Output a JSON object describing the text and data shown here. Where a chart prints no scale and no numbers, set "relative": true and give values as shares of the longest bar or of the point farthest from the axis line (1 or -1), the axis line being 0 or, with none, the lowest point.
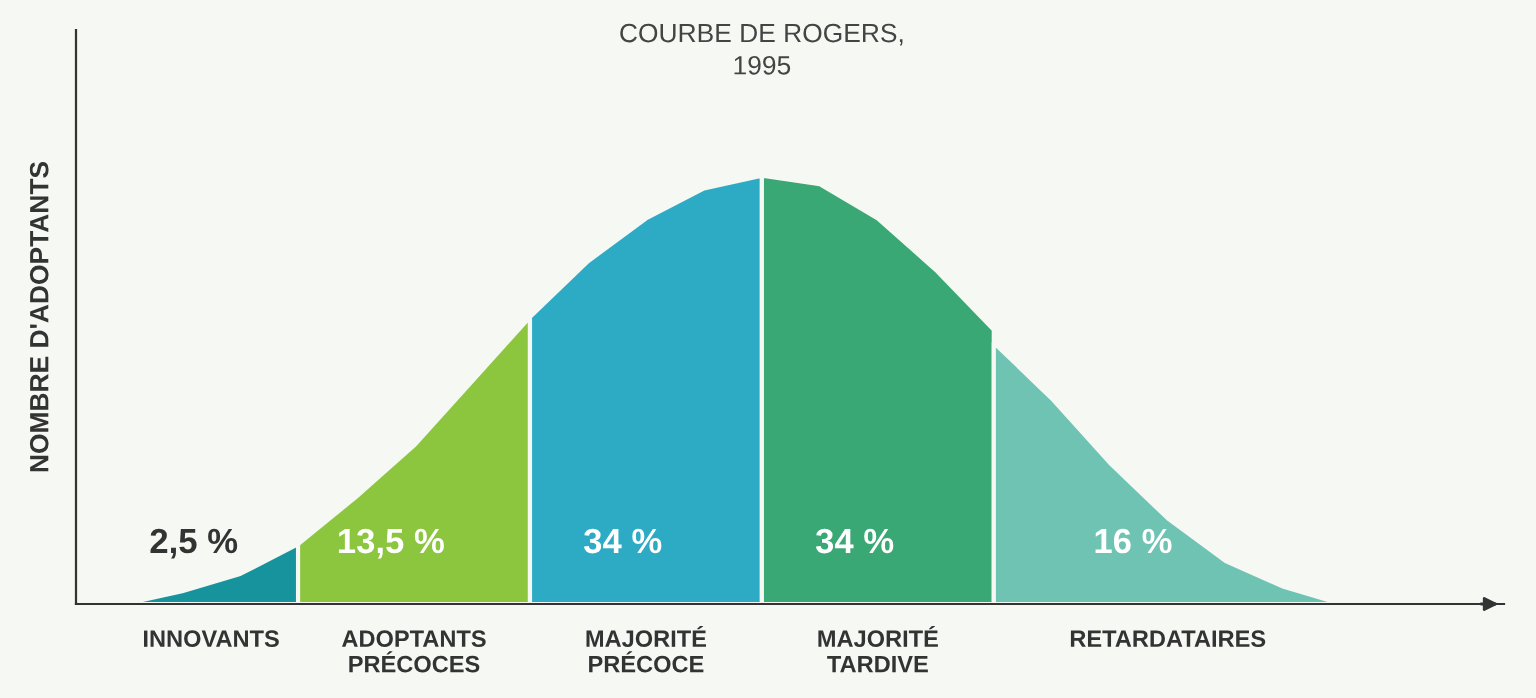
{
  "chart_data": {
    "type": "area",
    "relative": true,
    "title": "COURBE DE ROGERS,\n1995",
    "ylabel": "NOMBRE D'ADOPTANTS",
    "categories": [
      null,
      null,
      null,
      null,
      null,
      null,
      null,
      null,
      null,
      null,
      null,
      null,
      null,
      null,
      null,
      null,
      null,
      null,
      null,
      null,
      null,
      null
    ],
    "series": [
      {
        "name": "INNOVANTS",
        "color": "#17939d",
        "values": [
          0,
          0.03,
          0.07,
          0.14,
          null,
          null,
          null,
          null,
          null,
          null,
          null,
          null,
          null,
          null,
          null,
          null,
          null,
          null,
          null,
          null,
          null,
          null
        ]
      },
      {
        "name": "ADOPTANTS\nPRÉCOCES",
        "color": "#8cc63f",
        "values": [
          null,
          null,
          null,
          0.14,
          0.25,
          0.37,
          0.52,
          0.67,
          null,
          null,
          null,
          null,
          null,
          null,
          null,
          null,
          null,
          null,
          null,
          null,
          null,
          null
        ]
      },
      {
        "name": "MAJORITÉ\nPRÉCOCE",
        "color": "#2eabc4",
        "values": [
          null,
          null,
          null,
          null,
          null,
          null,
          null,
          0.67,
          0.8,
          0.9,
          0.97,
          1.0,
          null,
          null,
          null,
          null,
          null,
          null,
          null,
          null,
          null,
          null
        ]
      },
      {
        "name": "MAJORITÉ\nTARDIVE",
        "color": "#3aa874",
        "values": [
          null,
          null,
          null,
          null,
          null,
          null,
          null,
          null,
          null,
          null,
          null,
          1.0,
          0.98,
          0.9,
          0.78,
          0.64,
          null,
          null,
          null,
          null,
          null,
          null
        ]
      },
      {
        "name": "RETARDATAIRES",
        "color": "#6fc3b2",
        "values": [
          null,
          null,
          null,
          null,
          null,
          null,
          null,
          null,
          null,
          null,
          null,
          null,
          null,
          null,
          null,
          0.61,
          0.48,
          0.33,
          0.2,
          0.1,
          0.04,
          0
        ]
      }
    ],
    "annotations": [
      "2,5 %",
      "13,5 %",
      "34 %",
      "34 %",
      "16 %"
    ]
  }
}
